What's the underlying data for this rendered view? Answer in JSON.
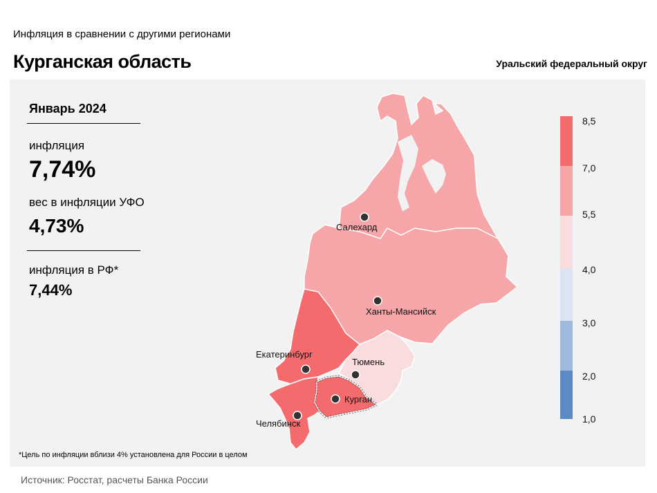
{
  "header": {
    "subtitle": "Инфляция  в сравнении  с другими  регионами",
    "title": "Курганская область",
    "district": "Уральский федеральный округ"
  },
  "stats": {
    "month": "Январь 2024",
    "inflation_label": "инфляция",
    "inflation_value": "7,74%",
    "weight_label": "вес в инфляции  УФО",
    "weight_value": "4,73%",
    "rf_label": "инфляция  в РФ*",
    "rf_value": "7,44%"
  },
  "cities": {
    "salekhard": "Салехард",
    "khanty": "Ханты-Мансийск",
    "ekaterinburg": "Екатеринбург",
    "tyumen": "Тюмень",
    "kurgan": "Курган",
    "chelyabinsk": "Челябинск"
  },
  "legend": {
    "ticks": [
      "8,5",
      "7,0",
      "5,5",
      "4,0",
      "3,0",
      "2,0",
      "1,0"
    ],
    "colors": [
      "#f46b6e",
      "#f7a4a6",
      "#f9dcdd",
      "#dce4f3",
      "#9fb8dd",
      "#5d89c7"
    ]
  },
  "region_colors": {
    "yamal": "#f6a6a8",
    "khmao": "#f6a6a8",
    "sverdlovsk": "#f46b6e",
    "tyumen": "#f9dcdd",
    "chelyabinsk": "#f46b6e",
    "kurgan": "#f46b6e"
  },
  "footnote": "*Цель по инфляции вблизи 4% установлена для России в целом",
  "source": "Источник: Росстат, расчеты Банка России"
}
